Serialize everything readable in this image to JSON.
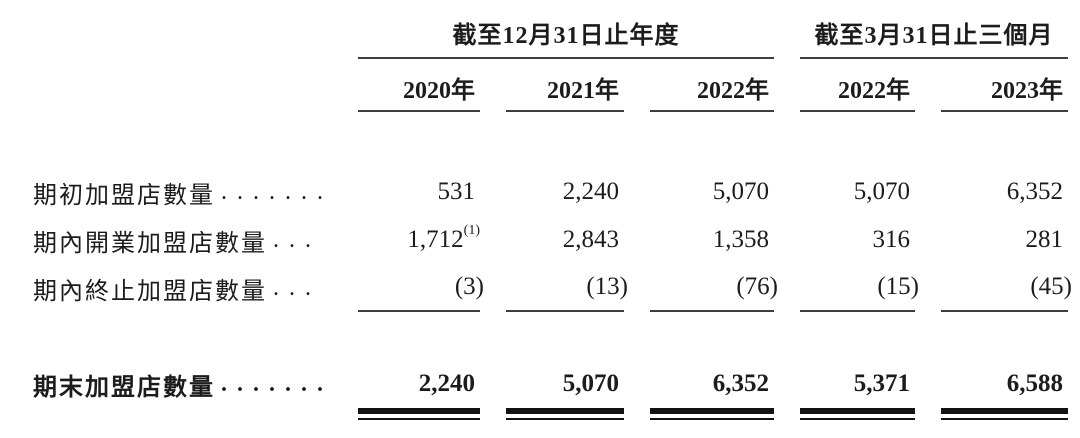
{
  "colors": {
    "background": "#ffffff",
    "text": "#1c1c1c",
    "thin_rule": "#3f3f3f",
    "heavy_rule": "#121212"
  },
  "table": {
    "col_groups": [
      {
        "title": "截至12月31日止年度",
        "years": [
          "2020年",
          "2021年",
          "2022年"
        ]
      },
      {
        "title": "截至3月31日止三個月",
        "years": [
          "2022年",
          "2023年"
        ]
      }
    ],
    "rows": [
      {
        "label": "期初加盟店數量",
        "leader": ". . . . . . .",
        "values": [
          "531",
          "2,240",
          "5,070",
          "5,070",
          "6,352"
        ]
      },
      {
        "label": "期內開業加盟店數量",
        "leader": ". . .",
        "values": [
          "1,712",
          "2,843",
          "1,358",
          "316",
          "281"
        ],
        "footnote": "(1)"
      },
      {
        "label": "期內終止加盟店數量",
        "leader": ". . .",
        "values": [
          "(3)",
          "(13)",
          "(76)",
          "(15)",
          "(45)"
        ]
      }
    ],
    "total_row": {
      "label": "期末加盟店數量",
      "leader": ". . . . . . .",
      "values": [
        "2,240",
        "5,070",
        "6,352",
        "5,371",
        "6,588"
      ]
    }
  }
}
